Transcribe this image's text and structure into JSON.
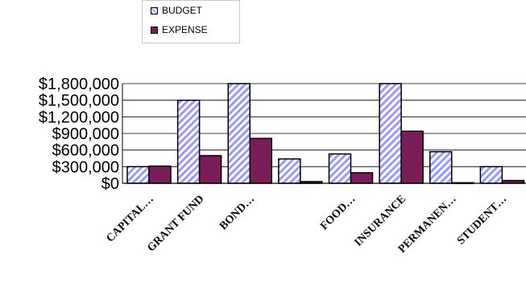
{
  "chart_data": {
    "type": "bar",
    "categories": [
      "CAPITAL…",
      "GRANT FUND",
      "BOND…",
      "",
      "FOOD…",
      "INSURANCE",
      "PERMANEN…",
      "STUDENT…"
    ],
    "series": [
      {
        "name": "BUDGET",
        "values": [
          300000,
          1500000,
          1850000,
          440000,
          530000,
          1850000,
          570000,
          300000
        ]
      },
      {
        "name": "EXPENSE",
        "values": [
          310000,
          500000,
          810000,
          30000,
          190000,
          940000,
          10000,
          50000
        ]
      }
    ],
    "ylim": [
      0,
      1800000
    ],
    "yticks": [
      {
        "value": 0,
        "label": "$0"
      },
      {
        "value": 300000,
        "label": "$300,000"
      },
      {
        "value": 600000,
        "label": "$600,000"
      },
      {
        "value": 900000,
        "label": "$900,000"
      },
      {
        "value": 1200000,
        "label": "$1,200,000"
      },
      {
        "value": 1500000,
        "label": "$1,500,000"
      },
      {
        "value": 1800000,
        "label": "$1,800,000"
      }
    ],
    "grid": true,
    "legend_position": "top",
    "colors": {
      "budget_stripe": "#9999ff",
      "expense": "#7b1d57",
      "axis": "#000000",
      "grid": "#000000"
    }
  }
}
